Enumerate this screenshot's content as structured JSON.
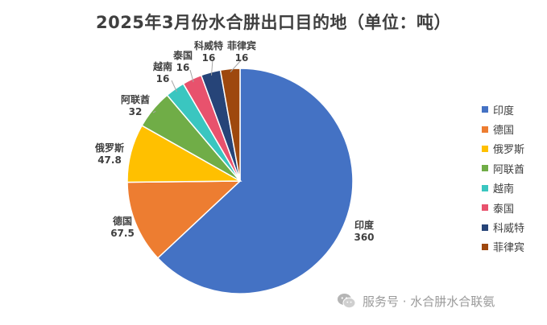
{
  "chart_data": {
    "type": "pie",
    "title": "2025年3月份水合肼出口目的地（单位：吨）",
    "categories": [
      "印度",
      "德国",
      "俄罗斯",
      "阿联酋",
      "越南",
      "泰国",
      "科威特",
      "菲律宾"
    ],
    "values": [
      360,
      67.5,
      47.8,
      32,
      16,
      16,
      16,
      16
    ],
    "value_labels": [
      "360",
      "67.5",
      "47.8",
      "32",
      "16",
      "16",
      "16",
      "16"
    ],
    "colors": [
      "#4472c4",
      "#ed7d31",
      "#ffc000",
      "#70ad47",
      "#3ac6c0",
      "#e8526d",
      "#264478",
      "#9e480e"
    ],
    "legend_position": "right",
    "start_angle_deg": 0,
    "direction": "clockwise"
  },
  "watermark": {
    "icon": "wechat-icon",
    "text": "服务号 · 水合肼水合联氨"
  }
}
